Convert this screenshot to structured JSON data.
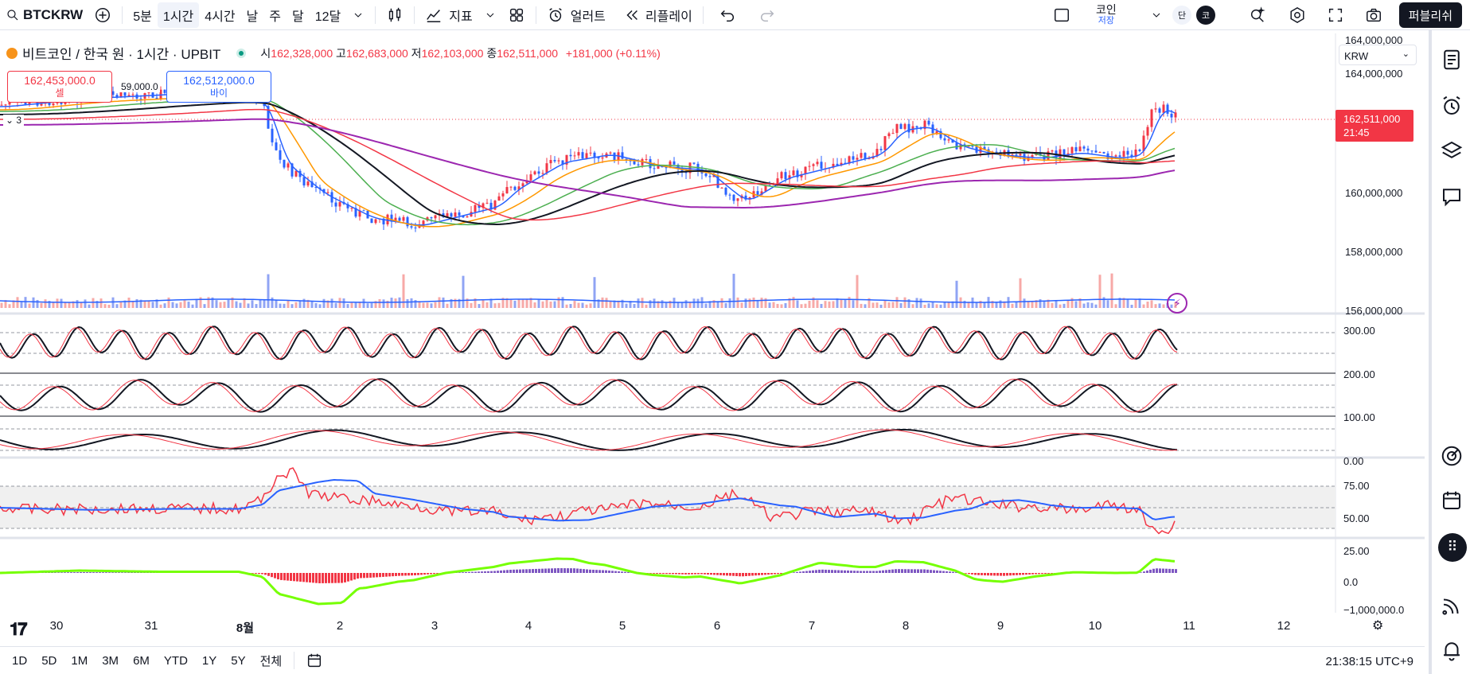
{
  "toolbar": {
    "symbol": "BTCKRW",
    "intervals": [
      "5분",
      "1시간",
      "4시간",
      "날",
      "주",
      "달",
      "12달"
    ],
    "active_interval": "1시간",
    "indicators_label": "지표",
    "alerts_label": "얼러트",
    "replay_label": "리플레이",
    "save_title": "코인",
    "save_sub": "저장",
    "badge_dan": "단",
    "badge_ko": "코",
    "publish_label": "퍼블리쉬"
  },
  "legend": {
    "title": "비트코인 / 한국 원 · 1시간 · UPBIT",
    "open_label": "시",
    "open": "162,328,000",
    "high_label": "고",
    "high": "162,683,000",
    "low_label": "저",
    "low": "162,103,000",
    "close_label": "종",
    "close": "162,511,000",
    "change": "+181,000 (+0.11%)",
    "indicator_count": "3"
  },
  "trade": {
    "sell_price": "162,453,000.0",
    "sell_label": "셀",
    "spread": "59,000.0",
    "buy_price": "162,512,000.0",
    "buy_label": "바이"
  },
  "price_scale": {
    "currency": "KRW",
    "labels": [
      "164,000,000",
      "160,000,000",
      "158,000,000",
      "156,000,000"
    ],
    "current_price": "162,511,000",
    "countdown": "21:45",
    "stoch_labels": [
      "300.00",
      "200.00",
      "100.00",
      "0.00"
    ],
    "rsi_labels": [
      "75.00",
      "50.00",
      "25.00"
    ],
    "macd_labels": [
      "0.0",
      "−1,000,000.0"
    ]
  },
  "time_axis": [
    "30",
    "31",
    "8월",
    "2",
    "3",
    "4",
    "5",
    "6",
    "7",
    "8",
    "9",
    "10",
    "11",
    "12"
  ],
  "bottom": {
    "ranges": [
      "1D",
      "5D",
      "1M",
      "3M",
      "6M",
      "YTD",
      "1Y",
      "5Y",
      "전체"
    ],
    "clock": "21:38:15 UTC+9"
  },
  "colors": {
    "up": "#f23645",
    "down": "#2962ff",
    "accent": "#2962ff"
  }
}
